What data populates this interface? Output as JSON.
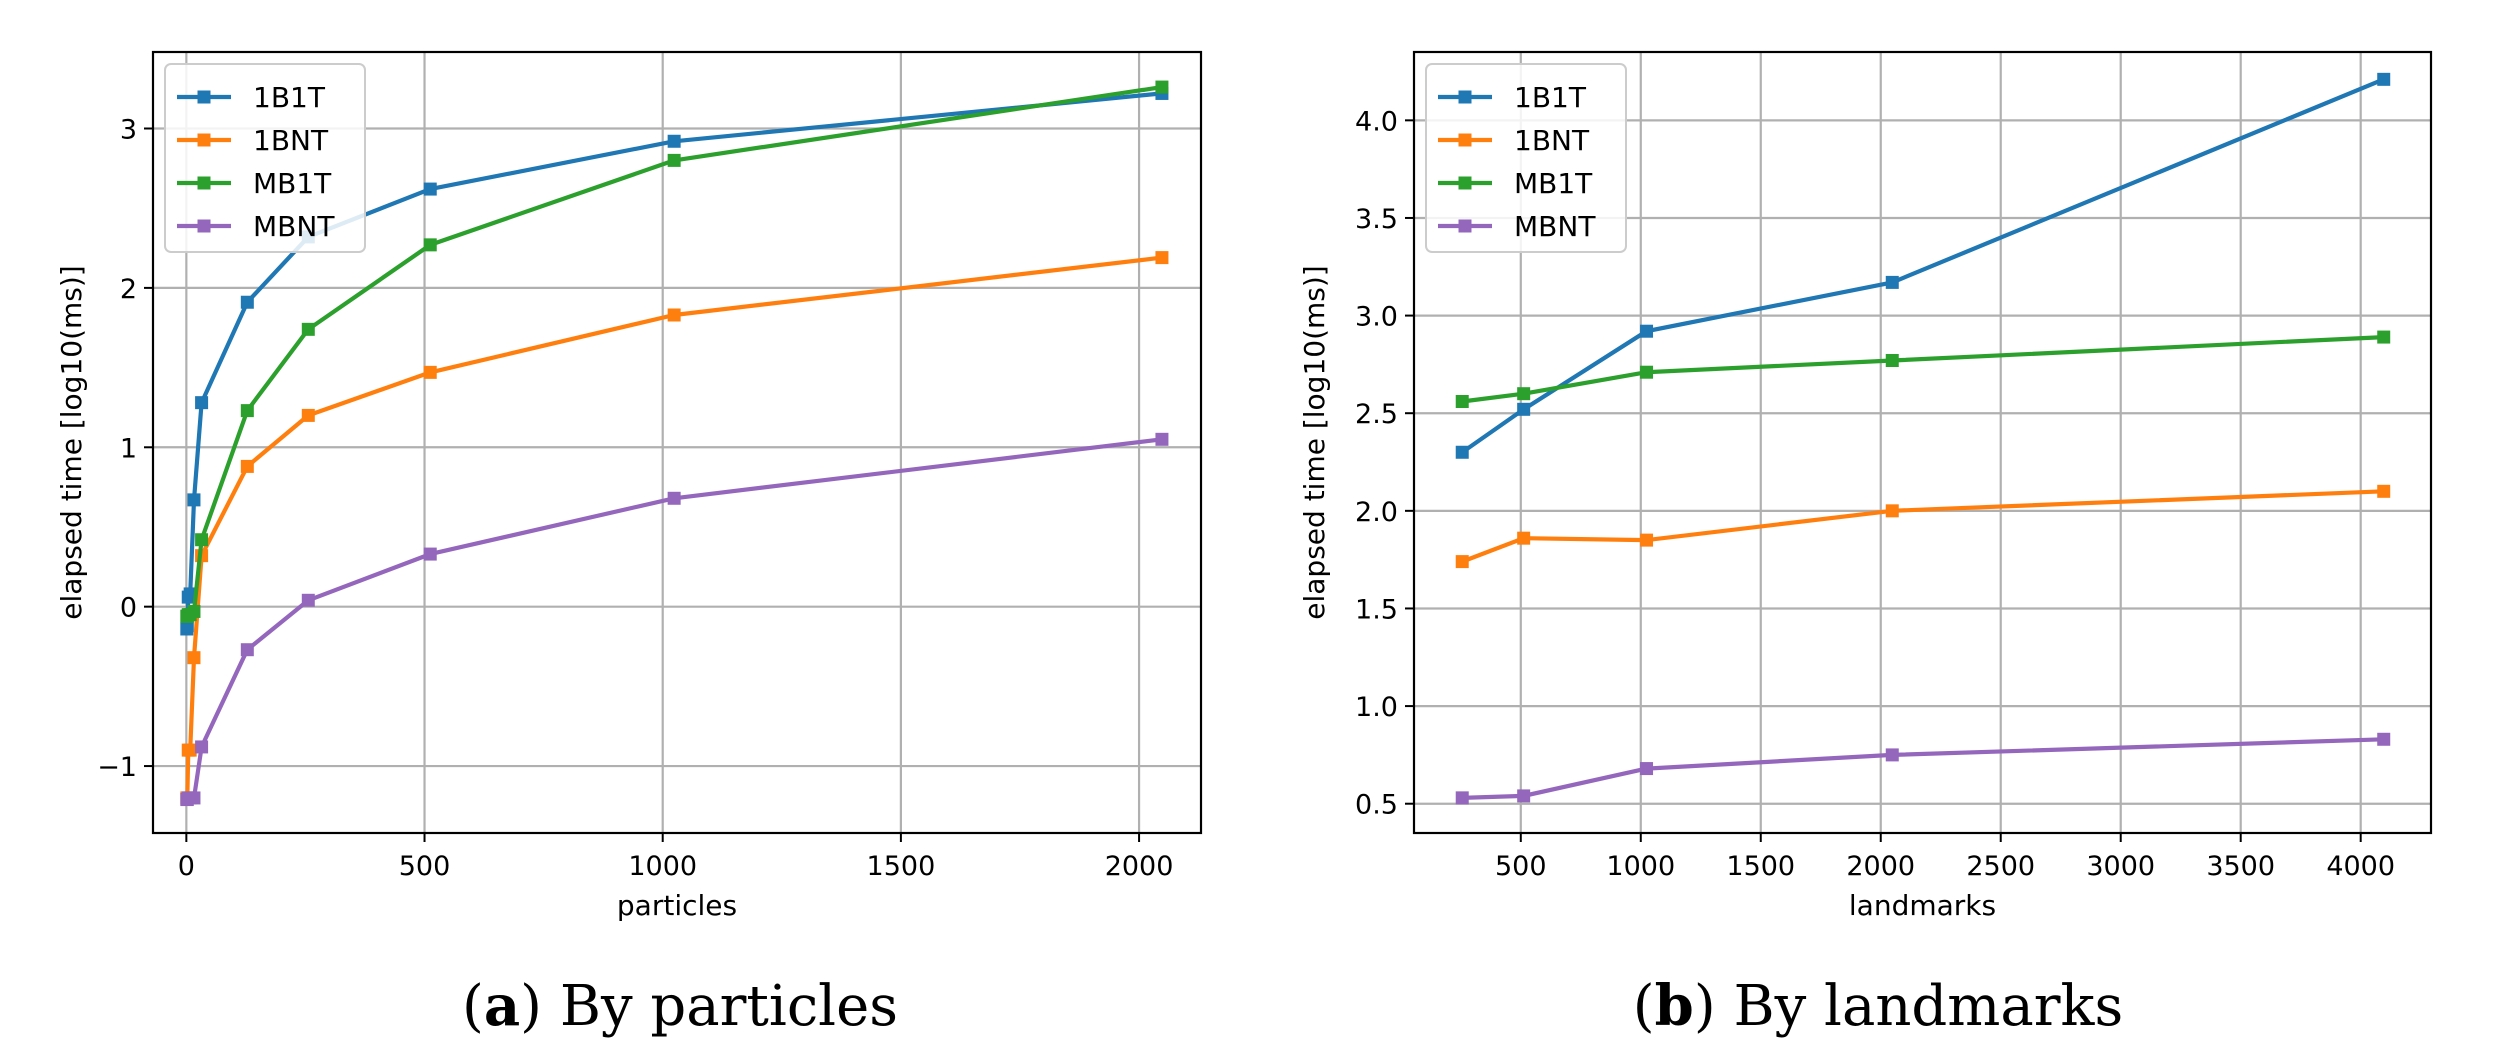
{
  "chart_data": [
    {
      "type": "line",
      "id": "a",
      "caption_letter": "a",
      "caption_text": "By particles",
      "xlabel": "particles",
      "ylabel": "elapsed time [log10(ms)]",
      "xlim": [
        -70,
        2130
      ],
      "ylim": [
        -1.42,
        3.48
      ],
      "xticks": [
        0,
        500,
        1000,
        1500,
        2000
      ],
      "yticks": [
        -1,
        0,
        1,
        2,
        3
      ],
      "ytick_labels": [
        "−1",
        "0",
        "1",
        "2",
        "3"
      ],
      "grid": true,
      "legend_position": "top-left",
      "x": [
        1,
        2,
        4,
        8,
        16,
        32,
        128,
        256,
        512,
        1024,
        2048
      ],
      "series": [
        {
          "name": "1B1T",
          "color": "#1f77b4",
          "values": [
            -0.14,
            -0.12,
            0.06,
            0.08,
            0.67,
            1.28,
            1.91,
            2.32,
            2.62,
            2.92,
            3.22
          ]
        },
        {
          "name": "1BNT",
          "color": "#ff7f0e",
          "values": [
            -1.2,
            -1.2,
            -0.9,
            -0.9,
            -0.32,
            0.32,
            0.88,
            1.2,
            1.47,
            1.83,
            2.19
          ]
        },
        {
          "name": "MB1T",
          "color": "#2ca02c",
          "values": [
            -0.06,
            -0.06,
            -0.05,
            -0.05,
            -0.03,
            0.42,
            1.23,
            1.74,
            2.27,
            2.8,
            3.26
          ]
        },
        {
          "name": "MBNT",
          "color": "#9467bd",
          "values": [
            -1.21,
            -1.21,
            -1.2,
            -1.2,
            -1.2,
            -0.88,
            -0.27,
            0.04,
            0.33,
            0.68,
            1.05
          ]
        }
      ]
    },
    {
      "type": "line",
      "id": "b",
      "caption_letter": "b",
      "caption_text": "By landmarks",
      "xlabel": "landmarks",
      "ylabel": "elapsed time [log10(ms)]",
      "xlim": [
        55,
        4293
      ],
      "ylim": [
        0.35,
        4.35
      ],
      "xticks": [
        500,
        1000,
        1500,
        2000,
        2500,
        3000,
        3500,
        4000
      ],
      "yticks": [
        0.5,
        1.0,
        1.5,
        2.0,
        2.5,
        3.0,
        3.5,
        4.0
      ],
      "ytick_labels": [
        "0.5",
        "1.0",
        "1.5",
        "2.0",
        "2.5",
        "3.0",
        "3.5",
        "4.0"
      ],
      "grid": true,
      "legend_position": "top-left",
      "x": [
        256,
        512,
        1024,
        2048,
        4096
      ],
      "series": [
        {
          "name": "1B1T",
          "color": "#1f77b4",
          "values": [
            2.3,
            2.52,
            2.92,
            3.17,
            4.21
          ]
        },
        {
          "name": "1BNT",
          "color": "#ff7f0e",
          "values": [
            1.74,
            1.86,
            1.85,
            2.0,
            2.1
          ]
        },
        {
          "name": "MB1T",
          "color": "#2ca02c",
          "values": [
            2.56,
            2.6,
            2.71,
            2.77,
            2.89
          ]
        },
        {
          "name": "MBNT",
          "color": "#9467bd",
          "values": [
            0.53,
            0.54,
            0.68,
            0.75,
            0.83
          ]
        }
      ]
    }
  ]
}
